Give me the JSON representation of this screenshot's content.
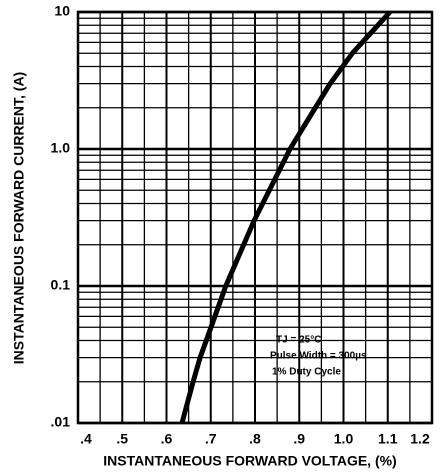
{
  "chart_data": {
    "type": "line",
    "x_label": "INSTANTANEOUS FORWARD VOLTAGE, (%)",
    "y_label": "INSTANTANEOUS FORWARD CURRENT, (A)",
    "annotations": [
      "TJ = 25°C",
      "Pulse Width = 300µs",
      "1% Duty Cycle"
    ],
    "series": [
      {
        "color": "#000000",
        "x": [
          0.635,
          0.66,
          0.676,
          0.734,
          0.798,
          0.879,
          0.97,
          1.02,
          1.105
        ],
        "values": [
          0.01,
          0.02,
          0.03,
          0.1,
          0.3,
          1,
          3,
          5,
          10
        ]
      }
    ],
    "xlim": [
      0.4,
      1.2
    ],
    "xticks": [
      {
        "value": 0.4,
        "label": ".4"
      },
      {
        "value": 0.5,
        "label": ".5"
      },
      {
        "value": 0.6,
        "label": ".6"
      },
      {
        "value": 0.7,
        "label": ".7"
      },
      {
        "value": 0.8,
        "label": ".8"
      },
      {
        "value": 0.9,
        "label": ".9"
      },
      {
        "value": 1.0,
        "label": "1.0"
      },
      1.1,
      1.2
    ],
    "ylim": [
      0.01,
      10
    ],
    "yticks": [
      {
        "value": 0.01,
        "label": ".01"
      },
      0.1,
      {
        "value": 1,
        "label": "1.0"
      },
      10
    ],
    "y_log": true,
    "grid": true
  }
}
